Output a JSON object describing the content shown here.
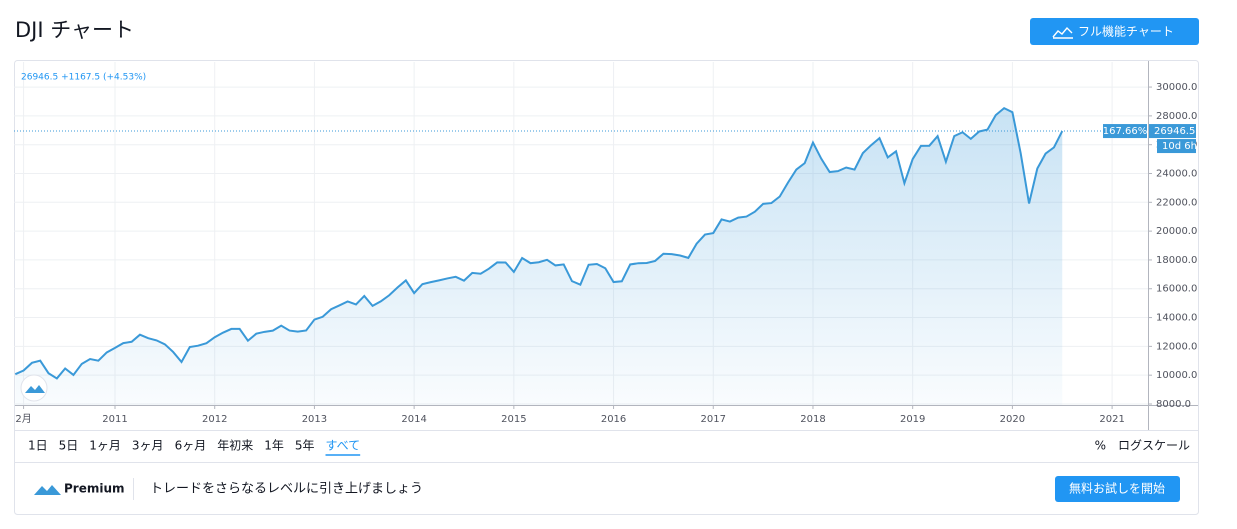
{
  "chart_data": {
    "type": "line",
    "title": "DJI チャート",
    "legend_text": "26946.5 +1167.5 (+4.53%)",
    "percent_label": "167.66%",
    "countdown": "10d 6h",
    "x": [
      2010,
      2010.083,
      2010.167,
      2010.25,
      2010.333,
      2010.417,
      2010.5,
      2010.583,
      2010.667,
      2010.75,
      2010.833,
      2010.917,
      2011,
      2011.083,
      2011.167,
      2011.25,
      2011.333,
      2011.417,
      2011.5,
      2011.583,
      2011.667,
      2011.75,
      2011.833,
      2011.917,
      2012,
      2012.083,
      2012.167,
      2012.25,
      2012.333,
      2012.417,
      2012.5,
      2012.583,
      2012.667,
      2012.75,
      2012.833,
      2012.917,
      2013,
      2013.083,
      2013.167,
      2013.25,
      2013.333,
      2013.417,
      2013.5,
      2013.583,
      2013.667,
      2013.75,
      2013.833,
      2013.917,
      2014,
      2014.083,
      2014.167,
      2014.25,
      2014.333,
      2014.417,
      2014.5,
      2014.583,
      2014.667,
      2014.75,
      2014.833,
      2014.917,
      2015,
      2015.083,
      2015.167,
      2015.25,
      2015.333,
      2015.417,
      2015.5,
      2015.583,
      2015.667,
      2015.75,
      2015.833,
      2015.917,
      2016,
      2016.083,
      2016.167,
      2016.25,
      2016.333,
      2016.417,
      2016.5,
      2016.583,
      2016.667,
      2016.75,
      2016.833,
      2016.917,
      2017,
      2017.083,
      2017.167,
      2017.25,
      2017.333,
      2017.417,
      2017.5,
      2017.583,
      2017.667,
      2017.75,
      2017.833,
      2017.917,
      2018,
      2018.083,
      2018.167,
      2018.25,
      2018.333,
      2018.417,
      2018.5,
      2018.583,
      2018.667,
      2018.75,
      2018.833,
      2018.917,
      2019,
      2019.083,
      2019.167,
      2019.25,
      2019.333,
      2019.417,
      2019.5,
      2019.583,
      2019.667,
      2019.75,
      2019.833,
      2019.917,
      2020,
      2020.083,
      2020.167,
      2020.25,
      2020.333,
      2020.417,
      2020.5
    ],
    "series": [
      {
        "name": "DJI",
        "color": "#3a99d8",
        "values": [
          10067,
          10325,
          10857,
          11009,
          10137,
          9774,
          10466,
          10015,
          10788,
          11118,
          11006,
          11578,
          11892,
          12226,
          12320,
          12811,
          12570,
          12414,
          12143,
          11614,
          10913,
          11955,
          12046,
          12218,
          12633,
          12952,
          13212,
          13214,
          12393,
          12880,
          13009,
          13091,
          13437,
          13096,
          13026,
          13104,
          13861,
          14054,
          14579,
          14840,
          15116,
          14910,
          15500,
          14810,
          15130,
          15546,
          16086,
          16577,
          15699,
          16322,
          16458,
          16581,
          16717,
          16827,
          16563,
          17098,
          17043,
          17391,
          17828,
          17823,
          17165,
          18133,
          17776,
          17841,
          18011,
          17620,
          17690,
          16528,
          16285,
          17664,
          17720,
          17425,
          16466,
          16517,
          17685,
          17774,
          17787,
          17930,
          18432,
          18401,
          18308,
          18142,
          19124,
          19763,
          19864,
          20812,
          20663,
          20941,
          21009,
          21350,
          21891,
          21948,
          22405,
          23377,
          24272,
          24719,
          26149,
          25029,
          24103,
          24163,
          24416,
          24271,
          25415,
          25965,
          26458,
          25116,
          25538,
          23327,
          25000,
          25916,
          25929,
          26593,
          24815,
          26600,
          26864,
          26403,
          26917,
          27046,
          28051,
          28538,
          28256,
          25409,
          21917,
          24346,
          25383,
          25813,
          26946.5
        ]
      }
    ],
    "xlim": [
      2009.987,
      2021.36
    ],
    "xticks": [
      {
        "value": 2010.083,
        "label": "2月"
      },
      2011,
      2012,
      2013,
      2014,
      2015,
      2016,
      2017,
      2018,
      2019,
      2020,
      2021
    ],
    "ylim": [
      7930,
      31740
    ],
    "yticks": [
      {
        "value": 8000,
        "label": "8000.0"
      },
      {
        "value": 10000,
        "label": "10000.0"
      },
      {
        "value": 12000,
        "label": "12000.0"
      },
      {
        "value": 14000,
        "label": "14000.0"
      },
      {
        "value": 16000,
        "label": "16000.0"
      },
      {
        "value": 18000,
        "label": "18000.0"
      },
      {
        "value": 20000,
        "label": "20000.0"
      },
      {
        "value": 22000,
        "label": "22000.0"
      },
      {
        "value": 24000,
        "label": "24000.0"
      },
      {
        "value": 26000,
        "label": "26000.0"
      },
      {
        "value": 28000,
        "label": "28000.0"
      },
      {
        "value": 30000,
        "label": "30000.0"
      }
    ],
    "grid": true
  },
  "ui": {
    "full_chart_button": "フル機能チャート",
    "ranges": [
      "1日",
      "5日",
      "1ヶ月",
      "3ヶ月",
      "6ヶ月",
      "年初来",
      "1年",
      "5年",
      "すべて"
    ],
    "percent": "%",
    "log_scale": "ログスケール",
    "premium": "Premium",
    "promo": "トレードをさらなるレベルに引き上げましょう",
    "trial_button": "無料お試しを開始"
  }
}
